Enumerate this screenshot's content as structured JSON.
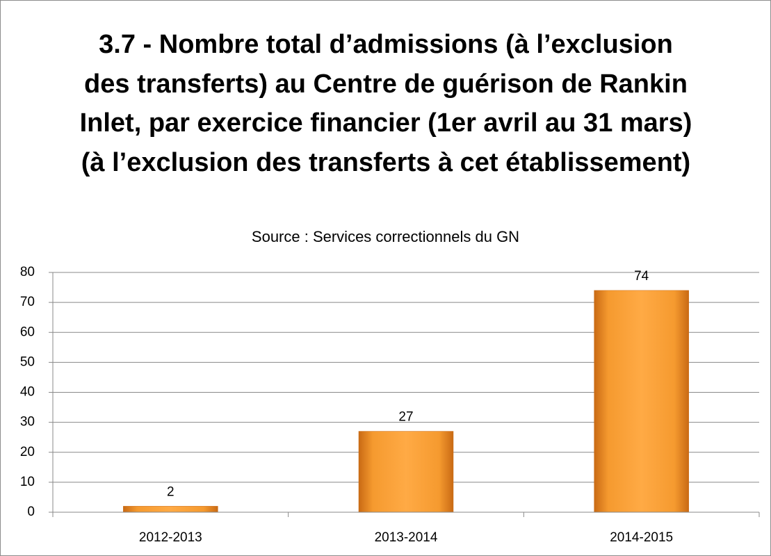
{
  "chart_data": {
    "type": "bar",
    "title": "3.7 - Nombre total d’admissions (à l’exclusion des transferts) au Centre de guérison de Rankin Inlet, par exercice financier (1er avril au 31 mars) (à l’exclusion des transferts à cet établissement)",
    "subtitle": "Source : Services correctionnels du GN",
    "categories": [
      "2012-2013",
      "2013-2014",
      "2014-2015"
    ],
    "values": [
      2,
      27,
      74
    ],
    "color": "#f59a2f",
    "ylim": [
      0,
      80
    ],
    "yticks": [
      0,
      10,
      20,
      30,
      40,
      50,
      60,
      70,
      80
    ],
    "grid": true
  }
}
